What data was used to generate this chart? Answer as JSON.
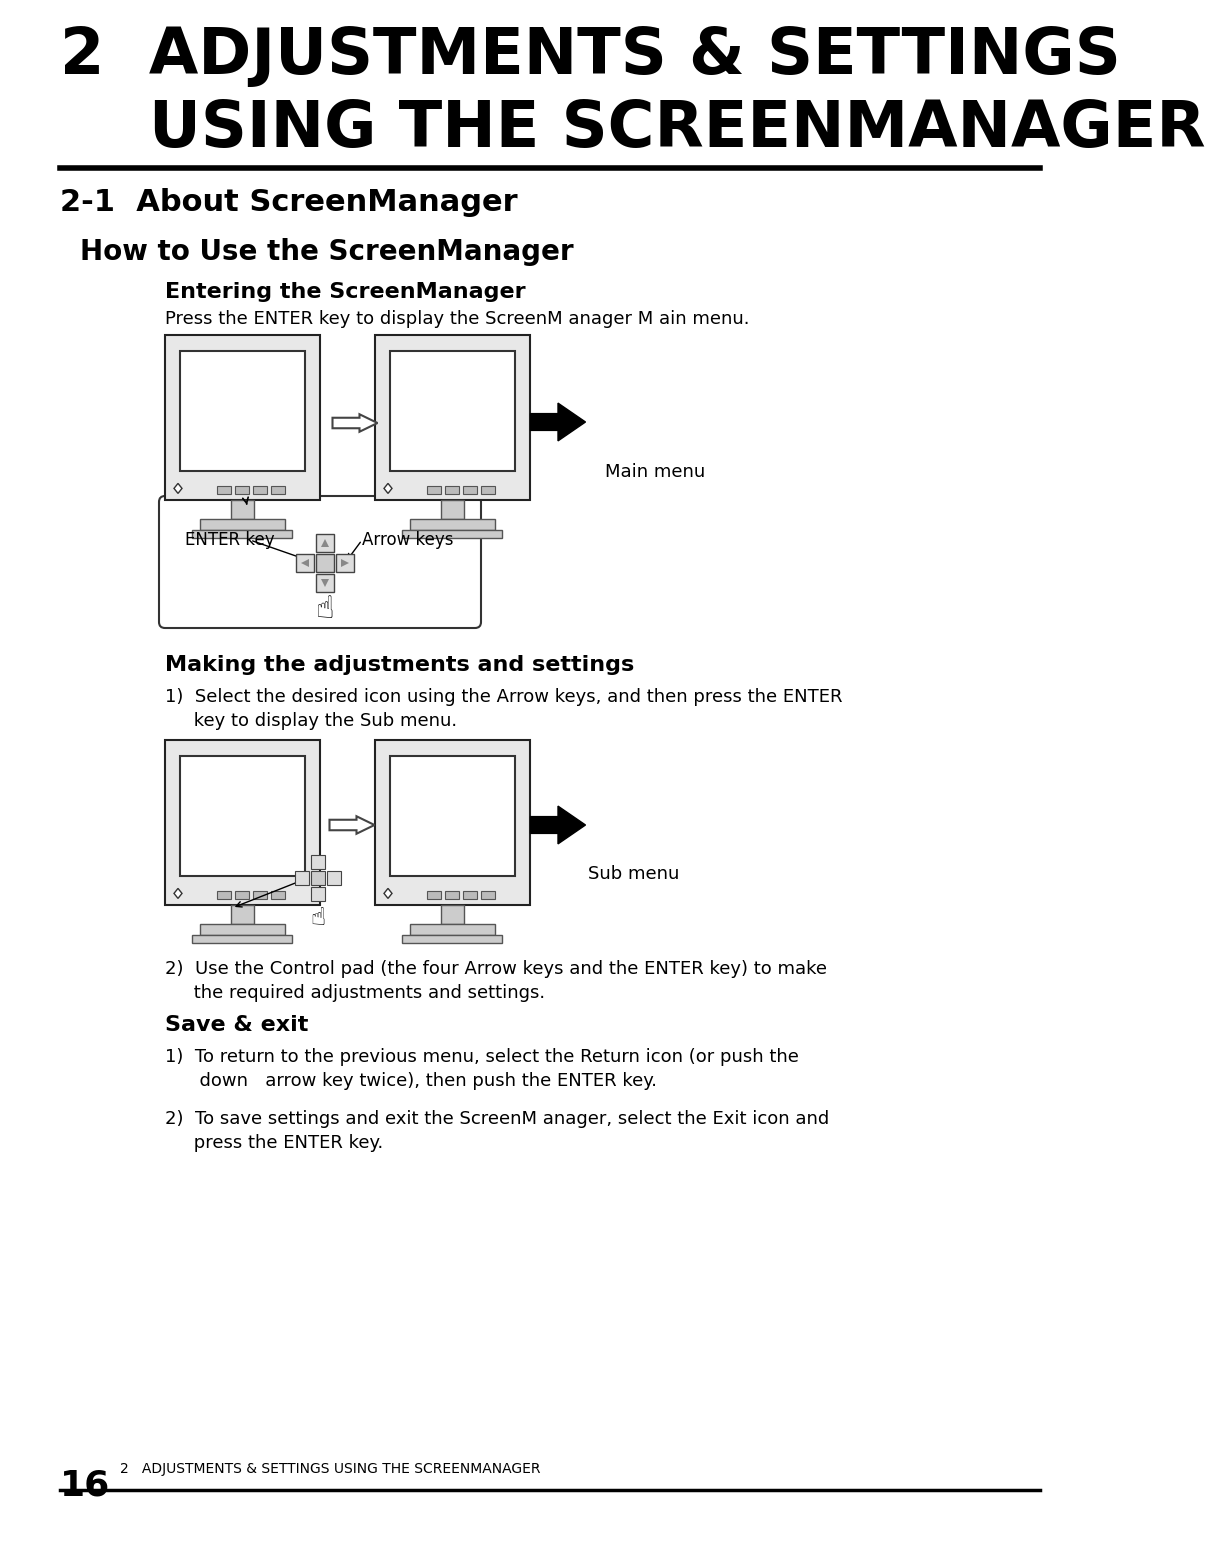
{
  "bg_color": "#ffffff",
  "title_line1": "2  ADJUSTMENTS & SETTINGS",
  "title_line2": "    USING THE SCREENMANAGER",
  "section_title": "2-1  About ScreenManager",
  "subsection_title": "How to Use the ScreenManager",
  "sub1_title": "Entering the ScreenManager",
  "sub1_body": "Press the ENTER key to display the ScreenM anager M ain menu.",
  "main_menu_label": "Main menu",
  "enter_key_label": "ENTER key",
  "arrow_keys_label": "Arrow keys",
  "sub2_title": "Making the adjustments and settings",
  "sub2_item1a": "1)  Select the desired icon using the Arrow keys, and then press the ENTER",
  "sub2_item1b": "     key to display the Sub menu.",
  "sub_menu_label": "Sub menu",
  "sub2_item2a": "2)  Use the Control pad (the four Arrow keys and the ENTER key) to make",
  "sub2_item2b": "     the required adjustments and settings.",
  "sub3_title": "Save & exit",
  "sub3_item1a": "1)  To return to the previous menu, select the Return icon (or push the",
  "sub3_item1b": "      down   arrow key twice), then push the ENTER key.",
  "sub3_item2a": "2)  To save settings and exit the ScreenM anager, select the Exit icon and",
  "sub3_item2b": "     press the ENTER key.",
  "footer_number": "16",
  "footer_text": "2   ADJUSTMENTS & SETTINGS USING THE SCREENMANAGER",
  "title_fontsize": 46,
  "section_fontsize": 22,
  "subsection_fontsize": 20,
  "sub_title_fontsize": 16,
  "body_fontsize": 14
}
